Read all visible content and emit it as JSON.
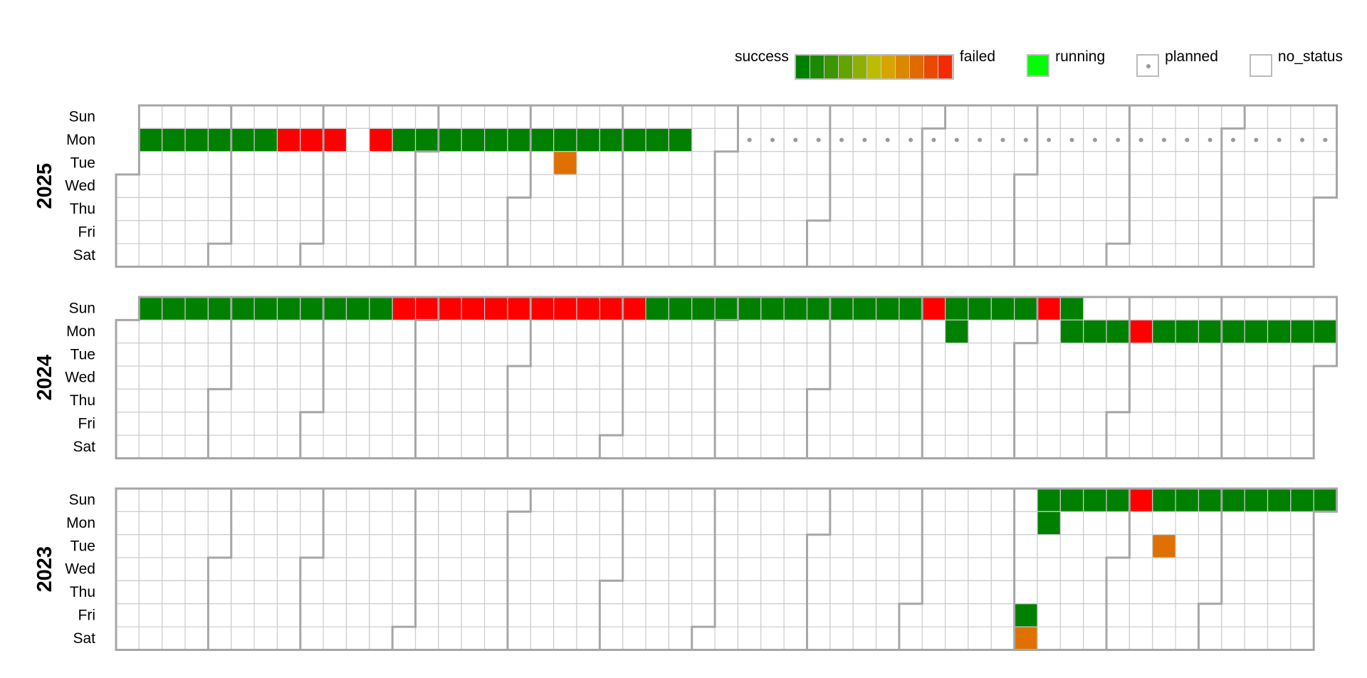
{
  "legend": {
    "success_label": "success",
    "failed_label": "failed",
    "running_label": "running",
    "planned_label": "planned",
    "no_status_label": "no_status",
    "gradient": [
      "#008000",
      "#1a8a00",
      "#3d9600",
      "#65a300",
      "#8fb000",
      "#bdbd00",
      "#d9a300",
      "#d98800",
      "#e06a00",
      "#ea4a00",
      "#f52a00"
    ],
    "running_color": "#00ff00"
  },
  "day_labels": [
    "Sun",
    "Mon",
    "Tue",
    "Wed",
    "Thu",
    "Fri",
    "Sat"
  ],
  "colors": {
    "success": "#008000",
    "failed": "#ff0000",
    "partial": "#e07000",
    "planned_dot": "#999999",
    "cell_border": "#cccccc",
    "month_border": "#a6a6a6"
  },
  "years": [
    {
      "year": "2025",
      "runs": [
        {
          "week": 1,
          "day": 1,
          "status": "success"
        },
        {
          "week": 2,
          "day": 1,
          "status": "success"
        },
        {
          "week": 3,
          "day": 1,
          "status": "success"
        },
        {
          "week": 4,
          "day": 1,
          "status": "success"
        },
        {
          "week": 5,
          "day": 1,
          "status": "success"
        },
        {
          "week": 6,
          "day": 1,
          "status": "success"
        },
        {
          "week": 7,
          "day": 1,
          "status": "failed"
        },
        {
          "week": 8,
          "day": 1,
          "status": "failed"
        },
        {
          "week": 9,
          "day": 1,
          "status": "failed"
        },
        {
          "week": 11,
          "day": 1,
          "status": "failed"
        },
        {
          "week": 12,
          "day": 1,
          "status": "success"
        },
        {
          "week": 13,
          "day": 1,
          "status": "success"
        },
        {
          "week": 14,
          "day": 1,
          "status": "success"
        },
        {
          "week": 15,
          "day": 1,
          "status": "success"
        },
        {
          "week": 16,
          "day": 1,
          "status": "success"
        },
        {
          "week": 17,
          "day": 1,
          "status": "success"
        },
        {
          "week": 18,
          "day": 1,
          "status": "success"
        },
        {
          "week": 19,
          "day": 1,
          "status": "success"
        },
        {
          "week": 20,
          "day": 1,
          "status": "success"
        },
        {
          "week": 21,
          "day": 1,
          "status": "success"
        },
        {
          "week": 22,
          "day": 1,
          "status": "success"
        },
        {
          "week": 23,
          "day": 1,
          "status": "success"
        },
        {
          "week": 24,
          "day": 1,
          "status": "success"
        },
        {
          "week": 19,
          "day": 2,
          "status": "partial"
        }
      ],
      "planned": {
        "day": 1,
        "from_week": 27,
        "to_week": 52
      }
    },
    {
      "year": "2024",
      "runs": [
        {
          "week": 1,
          "day": 0,
          "status": "success"
        },
        {
          "week": 2,
          "day": 0,
          "status": "success"
        },
        {
          "week": 3,
          "day": 0,
          "status": "success"
        },
        {
          "week": 4,
          "day": 0,
          "status": "success"
        },
        {
          "week": 5,
          "day": 0,
          "status": "success"
        },
        {
          "week": 6,
          "day": 0,
          "status": "success"
        },
        {
          "week": 7,
          "day": 0,
          "status": "success"
        },
        {
          "week": 8,
          "day": 0,
          "status": "success"
        },
        {
          "week": 9,
          "day": 0,
          "status": "success"
        },
        {
          "week": 10,
          "day": 0,
          "status": "success"
        },
        {
          "week": 11,
          "day": 0,
          "status": "success"
        },
        {
          "week": 12,
          "day": 0,
          "status": "failed"
        },
        {
          "week": 13,
          "day": 0,
          "status": "failed"
        },
        {
          "week": 14,
          "day": 0,
          "status": "failed"
        },
        {
          "week": 15,
          "day": 0,
          "status": "failed"
        },
        {
          "week": 16,
          "day": 0,
          "status": "failed"
        },
        {
          "week": 17,
          "day": 0,
          "status": "failed"
        },
        {
          "week": 18,
          "day": 0,
          "status": "failed"
        },
        {
          "week": 19,
          "day": 0,
          "status": "failed"
        },
        {
          "week": 20,
          "day": 0,
          "status": "failed"
        },
        {
          "week": 21,
          "day": 0,
          "status": "failed"
        },
        {
          "week": 22,
          "day": 0,
          "status": "failed"
        },
        {
          "week": 23,
          "day": 0,
          "status": "success"
        },
        {
          "week": 24,
          "day": 0,
          "status": "success"
        },
        {
          "week": 25,
          "day": 0,
          "status": "success"
        },
        {
          "week": 26,
          "day": 0,
          "status": "success"
        },
        {
          "week": 27,
          "day": 0,
          "status": "success"
        },
        {
          "week": 28,
          "day": 0,
          "status": "success"
        },
        {
          "week": 29,
          "day": 0,
          "status": "success"
        },
        {
          "week": 30,
          "day": 0,
          "status": "success"
        },
        {
          "week": 31,
          "day": 0,
          "status": "success"
        },
        {
          "week": 32,
          "day": 0,
          "status": "success"
        },
        {
          "week": 33,
          "day": 0,
          "status": "success"
        },
        {
          "week": 34,
          "day": 0,
          "status": "success"
        },
        {
          "week": 35,
          "day": 0,
          "status": "failed"
        },
        {
          "week": 36,
          "day": 0,
          "status": "success"
        },
        {
          "week": 37,
          "day": 0,
          "status": "success"
        },
        {
          "week": 38,
          "day": 0,
          "status": "success"
        },
        {
          "week": 39,
          "day": 0,
          "status": "success"
        },
        {
          "week": 40,
          "day": 0,
          "status": "failed"
        },
        {
          "week": 41,
          "day": 0,
          "status": "success"
        },
        {
          "week": 36,
          "day": 1,
          "status": "success"
        },
        {
          "week": 41,
          "day": 1,
          "status": "success"
        },
        {
          "week": 42,
          "day": 1,
          "status": "success"
        },
        {
          "week": 43,
          "day": 1,
          "status": "success"
        },
        {
          "week": 44,
          "day": 1,
          "status": "failed"
        },
        {
          "week": 45,
          "day": 1,
          "status": "success"
        },
        {
          "week": 46,
          "day": 1,
          "status": "success"
        },
        {
          "week": 47,
          "day": 1,
          "status": "success"
        },
        {
          "week": 48,
          "day": 1,
          "status": "success"
        },
        {
          "week": 49,
          "day": 1,
          "status": "success"
        },
        {
          "week": 50,
          "day": 1,
          "status": "success"
        },
        {
          "week": 51,
          "day": 1,
          "status": "success"
        },
        {
          "week": 52,
          "day": 1,
          "status": "success"
        }
      ]
    },
    {
      "year": "2023",
      "runs": [
        {
          "week": 40,
          "day": 0,
          "status": "success"
        },
        {
          "week": 41,
          "day": 0,
          "status": "success"
        },
        {
          "week": 42,
          "day": 0,
          "status": "success"
        },
        {
          "week": 43,
          "day": 0,
          "status": "success"
        },
        {
          "week": 44,
          "day": 0,
          "status": "failed"
        },
        {
          "week": 45,
          "day": 0,
          "status": "success"
        },
        {
          "week": 46,
          "day": 0,
          "status": "success"
        },
        {
          "week": 47,
          "day": 0,
          "status": "success"
        },
        {
          "week": 48,
          "day": 0,
          "status": "success"
        },
        {
          "week": 49,
          "day": 0,
          "status": "success"
        },
        {
          "week": 50,
          "day": 0,
          "status": "success"
        },
        {
          "week": 51,
          "day": 0,
          "status": "success"
        },
        {
          "week": 52,
          "day": 0,
          "status": "success"
        },
        {
          "week": 40,
          "day": 1,
          "status": "success"
        },
        {
          "week": 45,
          "day": 2,
          "status": "partial"
        },
        {
          "week": 39,
          "day": 5,
          "status": "success"
        },
        {
          "week": 39,
          "day": 6,
          "status": "partial"
        }
      ]
    }
  ]
}
